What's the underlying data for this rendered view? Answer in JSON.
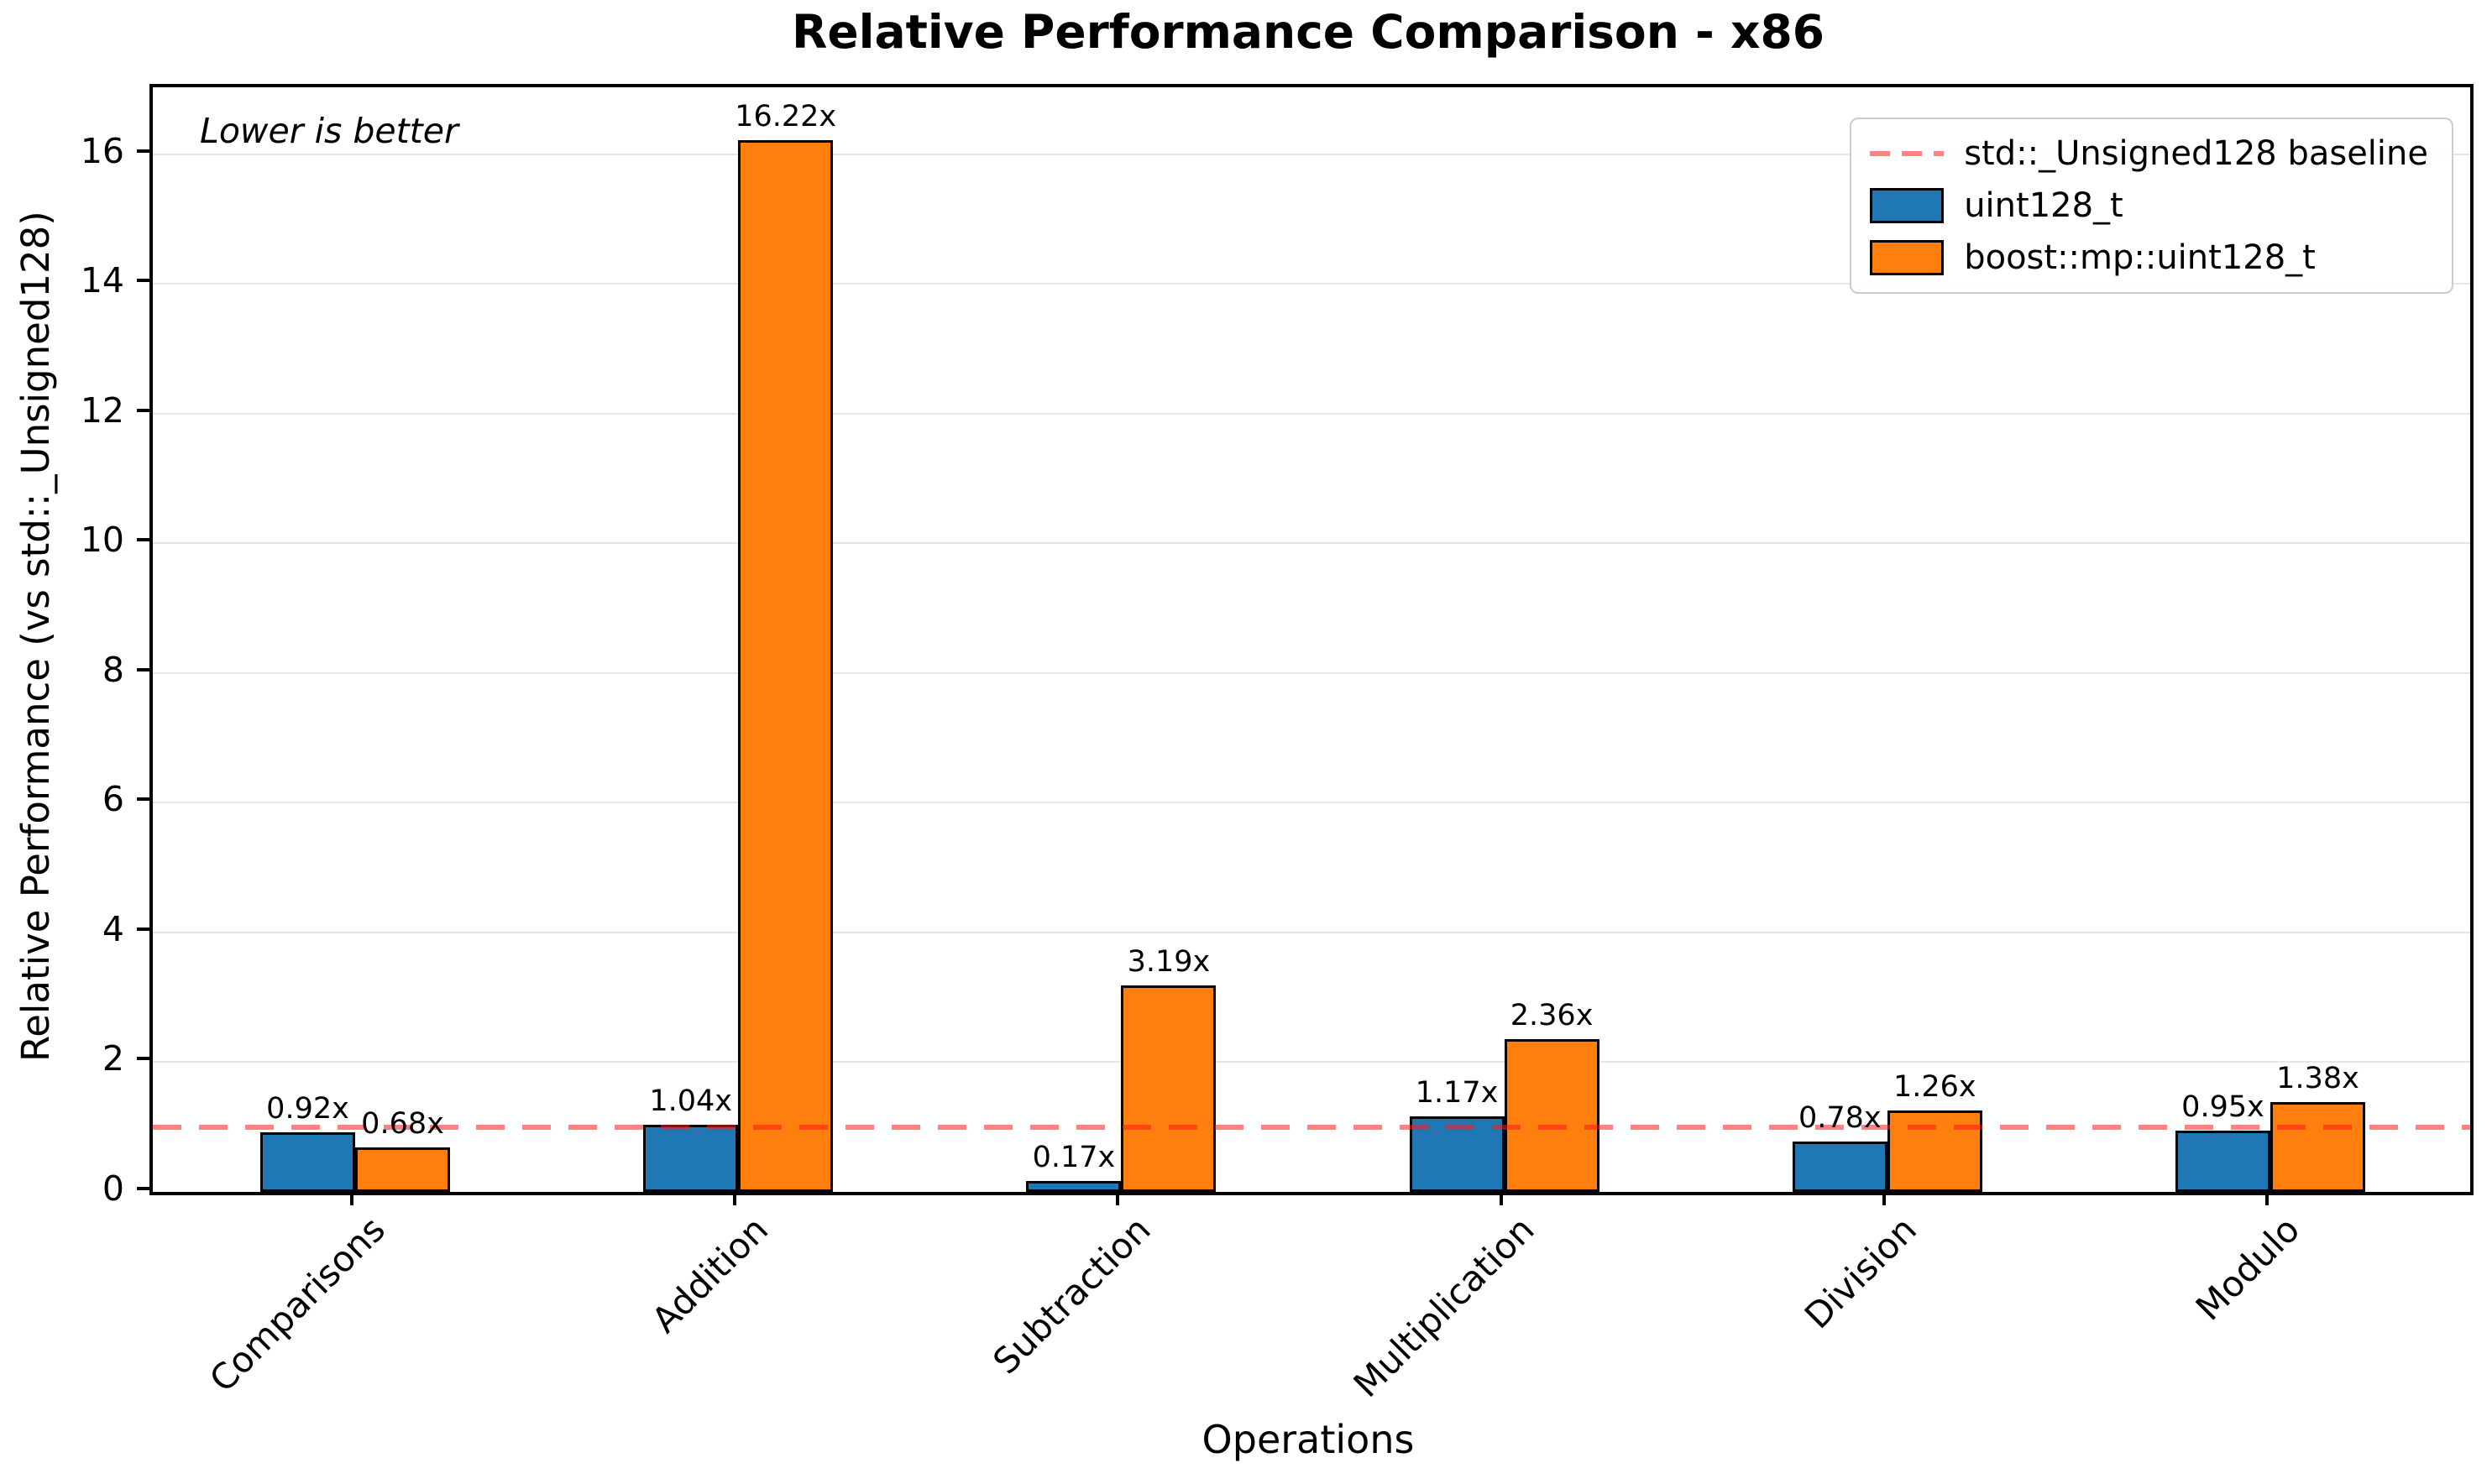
{
  "chart_data": {
    "type": "bar",
    "title": "Relative Performance Comparison - x86",
    "xlabel": "Operations",
    "ylabel": "Relative Performance (vs std::_Unsigned128)",
    "annotation": "Lower is better",
    "categories": [
      "Comparisons",
      "Addition",
      "Subtraction",
      "Multiplication",
      "Division",
      "Modulo"
    ],
    "series": [
      {
        "name": "uint128_t",
        "color": "#1f77b4",
        "values": [
          0.92,
          1.04,
          0.17,
          1.17,
          0.78,
          0.95
        ],
        "labels": [
          "0.92x",
          "1.04x",
          "0.17x",
          "1.17x",
          "0.78x",
          "0.95x"
        ]
      },
      {
        "name": "boost::mp::uint128_t",
        "color": "#ff7f0e",
        "values": [
          0.68,
          16.22,
          3.19,
          2.36,
          1.26,
          1.38
        ],
        "labels": [
          "0.68x",
          "16.22x",
          "3.19x",
          "2.36x",
          "1.26x",
          "1.38x"
        ]
      }
    ],
    "baseline": {
      "value": 1.0,
      "label": "std::_Unsigned128 baseline",
      "color": "#ff0000",
      "style": "dashed"
    },
    "yticks": [
      0,
      2,
      4,
      6,
      8,
      10,
      12,
      14,
      16
    ],
    "ylim": [
      0,
      17.03
    ],
    "grid": "horizontal-only",
    "legend_position": "upper-right"
  }
}
